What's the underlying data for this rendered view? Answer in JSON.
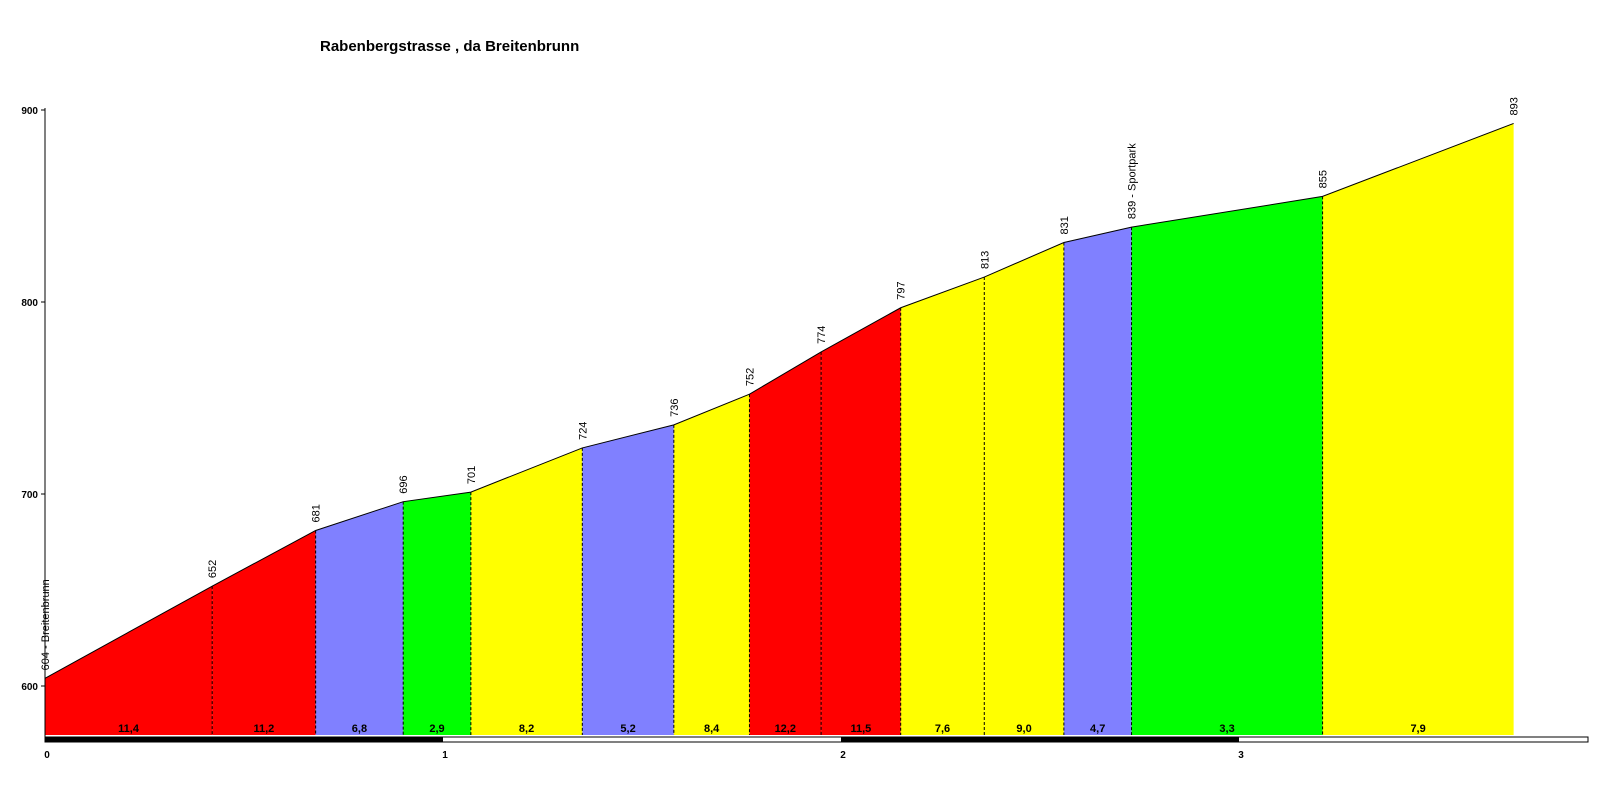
{
  "chart_data": {
    "type": "area",
    "title": "Rabenbergstrasse , da Breitenbrunn",
    "xlabel": "",
    "ylabel": "",
    "xlim": [
      0,
      3.82
    ],
    "ylim": [
      573,
      900
    ],
    "y_ticks": [
      600,
      700,
      800,
      900
    ],
    "x_ticks": [
      0,
      1,
      2,
      3
    ],
    "grid": false,
    "points": [
      {
        "x": 0.0,
        "elev": 604,
        "label": "604 - Breitenbrunn"
      },
      {
        "x": 0.42,
        "elev": 652,
        "label": "652"
      },
      {
        "x": 0.68,
        "elev": 681,
        "label": "681"
      },
      {
        "x": 0.9,
        "elev": 696,
        "label": "696"
      },
      {
        "x": 1.07,
        "elev": 701,
        "label": "701"
      },
      {
        "x": 1.35,
        "elev": 724,
        "label": "724"
      },
      {
        "x": 1.58,
        "elev": 736,
        "label": "736"
      },
      {
        "x": 1.77,
        "elev": 752,
        "label": "752"
      },
      {
        "x": 1.95,
        "elev": 774,
        "label": "774"
      },
      {
        "x": 2.15,
        "elev": 797,
        "label": "797"
      },
      {
        "x": 2.36,
        "elev": 813,
        "label": "813"
      },
      {
        "x": 2.56,
        "elev": 831,
        "label": "831"
      },
      {
        "x": 2.73,
        "elev": 839,
        "label": "839 - Sportpark"
      },
      {
        "x": 3.21,
        "elev": 855,
        "label": "855"
      },
      {
        "x": 3.69,
        "elev": 893,
        "label": "893"
      }
    ],
    "segments": [
      {
        "grade": "11,4",
        "color": "#ff0000"
      },
      {
        "grade": "11,2",
        "color": "#ff0000"
      },
      {
        "grade": "6,8",
        "color": "#8080ff"
      },
      {
        "grade": "2,9",
        "color": "#00ff00"
      },
      {
        "grade": "8,2",
        "color": "#ffff00"
      },
      {
        "grade": "5,2",
        "color": "#8080ff"
      },
      {
        "grade": "8,4",
        "color": "#ffff00"
      },
      {
        "grade": "12,2",
        "color": "#ff0000"
      },
      {
        "grade": "11,5",
        "color": "#ff0000"
      },
      {
        "grade": "7,6",
        "color": "#ffff00"
      },
      {
        "grade": "9,0",
        "color": "#ffff00"
      },
      {
        "grade": "4,7",
        "color": "#8080ff"
      },
      {
        "grade": "3,3",
        "color": "#00ff00"
      },
      {
        "grade": "7,9",
        "color": "#ffff00"
      }
    ]
  }
}
